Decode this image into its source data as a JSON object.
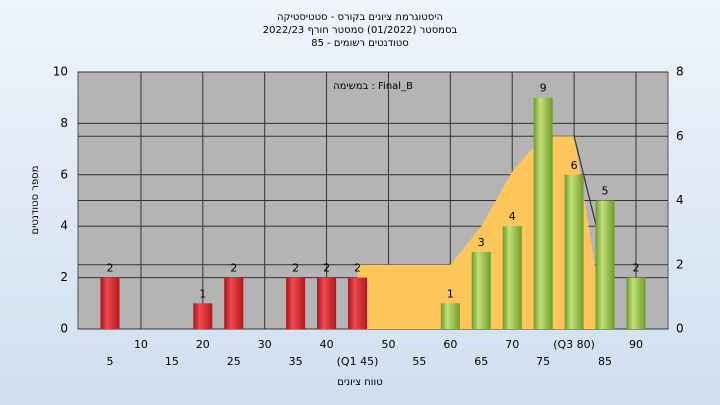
{
  "chart_data": {
    "type": "bar",
    "title_lines": [
      "היסטוגרמת ציונים בקורס - סטטיסטיקה",
      "בסמסטר  (01/2022)  סמסטר חורף 2022/23",
      "סטודנטים רשומים - 85"
    ],
    "annotation": "במשימה : Final_B",
    "xlabel": "טווח ציונים",
    "ylabel": "מספר סטודנטים",
    "categories": [
      "5",
      "10",
      "15",
      "20",
      "25",
      "30",
      "35",
      "40",
      "(Q1 45)",
      "50",
      "55",
      "60",
      "65",
      "70",
      "75",
      "(Q3 80)",
      "85",
      "90"
    ],
    "series": [
      {
        "type": "bar",
        "values": [
          2,
          0,
          0,
          1,
          2,
          0,
          2,
          2,
          2,
          0,
          0,
          1,
          3,
          4,
          9,
          6,
          5,
          2
        ],
        "colors": [
          "red",
          "red",
          "red",
          "red",
          "red",
          "red",
          "red",
          "red",
          "red",
          "green",
          "green",
          "green",
          "green",
          "green",
          "green",
          "green",
          "green",
          "green"
        ]
      },
      {
        "type": "area",
        "axis": "y2",
        "color": "#fcc65a",
        "values": [
          null,
          null,
          null,
          null,
          null,
          null,
          null,
          null,
          2,
          2,
          2,
          2,
          3.2,
          4.9,
          6,
          6,
          0,
          null
        ]
      },
      {
        "type": "line",
        "axis": "y2",
        "color": "#333333",
        "values": [
          null,
          null,
          null,
          null,
          null,
          null,
          null,
          null,
          null,
          null,
          null,
          null,
          null,
          null,
          null,
          6,
          2.1,
          null
        ]
      }
    ],
    "ylim": [
      0,
      10
    ],
    "yticks": [
      0,
      2,
      4,
      6,
      8,
      10
    ],
    "y2lim": [
      0,
      8
    ],
    "y2ticks": [
      0,
      2,
      4,
      6,
      8
    ],
    "grid": true
  }
}
